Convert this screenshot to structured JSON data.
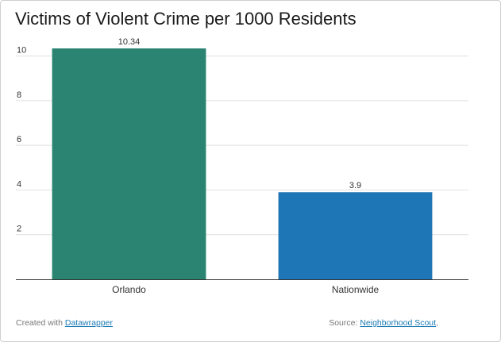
{
  "chart_data": {
    "type": "bar",
    "title": "Victims of Violent Crime per 1000 Residents",
    "categories": [
      "Orlando",
      "Nationwide"
    ],
    "values": [
      10.34,
      3.9
    ],
    "value_labels": [
      "10.34",
      "3.9"
    ],
    "bar_colors": [
      "#2a8471",
      "#1f76b6"
    ],
    "yticks": [
      "2",
      "4",
      "6",
      "8",
      "10"
    ],
    "ylim": [
      0,
      10.34
    ],
    "grid": true,
    "xlabel": "",
    "ylabel": ""
  },
  "footer": {
    "created_prefix": "Created with",
    "created_link": "Datawrapper",
    "source_prefix": "Source:",
    "source_link": "Neighborhood Scout",
    "source_suffix": ","
  },
  "colors": {
    "grid": "#e0e0e0",
    "axis": "#333333",
    "link": "#1a7ab5"
  }
}
